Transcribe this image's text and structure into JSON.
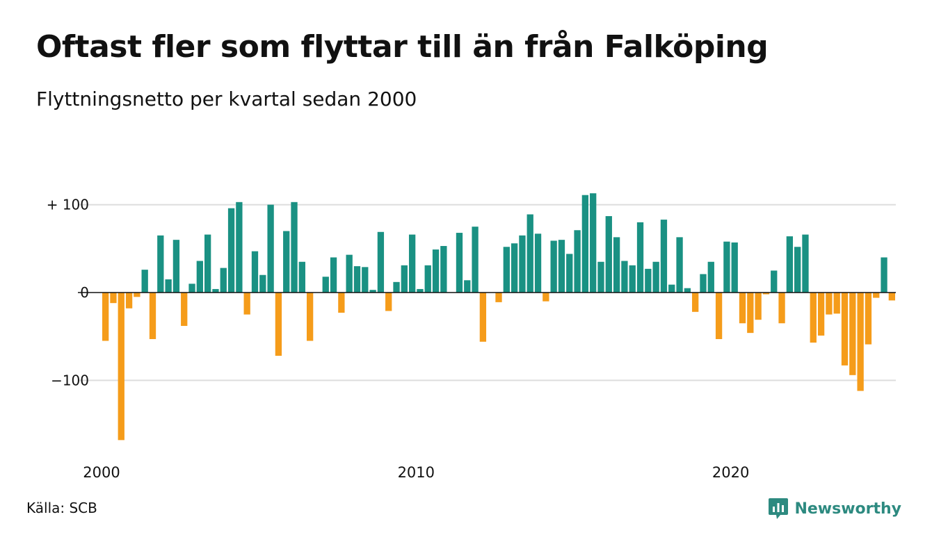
{
  "title": "Oftast fler som flyttar till än från Falköping",
  "subtitle": "Flyttningsnetto per kvartal sedan 2000",
  "source": "Källa: SCB",
  "brand": {
    "name": "Newsworthy",
    "icon": "newsworthy-logo-icon",
    "color": "#2d8a80"
  },
  "chart_data": {
    "type": "bar",
    "x_unit": "quarter",
    "start": "2000 Q1",
    "x_ticks": [
      "2000",
      "2010",
      "2020"
    ],
    "y_ticks": [
      {
        "value": 100,
        "label": "+ 100"
      },
      {
        "value": 0,
        "label": "0"
      },
      {
        "value": -100,
        "label": "−100"
      }
    ],
    "ylim": [
      -170,
      115
    ],
    "grid": true,
    "colors": {
      "positive": "#1a9183",
      "negative": "#f59c1a"
    },
    "values": [
      -55,
      -12,
      -168,
      -18,
      -5,
      26,
      -53,
      65,
      15,
      60,
      -38,
      10,
      36,
      66,
      4,
      28,
      96,
      103,
      -25,
      47,
      20,
      100,
      -72,
      70,
      103,
      35,
      -55,
      0,
      18,
      40,
      -23,
      43,
      30,
      29,
      3,
      69,
      -21,
      12,
      31,
      66,
      4,
      31,
      49,
      53,
      0,
      68,
      14,
      75,
      -56,
      0,
      -11,
      52,
      56,
      65,
      89,
      67,
      -10,
      59,
      60,
      44,
      71,
      111,
      113,
      35,
      87,
      63,
      36,
      31,
      80,
      27,
      35,
      83,
      9,
      63,
      5,
      -22,
      21,
      35,
      -53,
      58,
      57,
      -35,
      -46,
      -31,
      -2,
      25,
      -35,
      64,
      52,
      66,
      -57,
      -49,
      -25,
      -24,
      -83,
      -94,
      -112,
      -59,
      -6,
      40,
      -9
    ]
  }
}
